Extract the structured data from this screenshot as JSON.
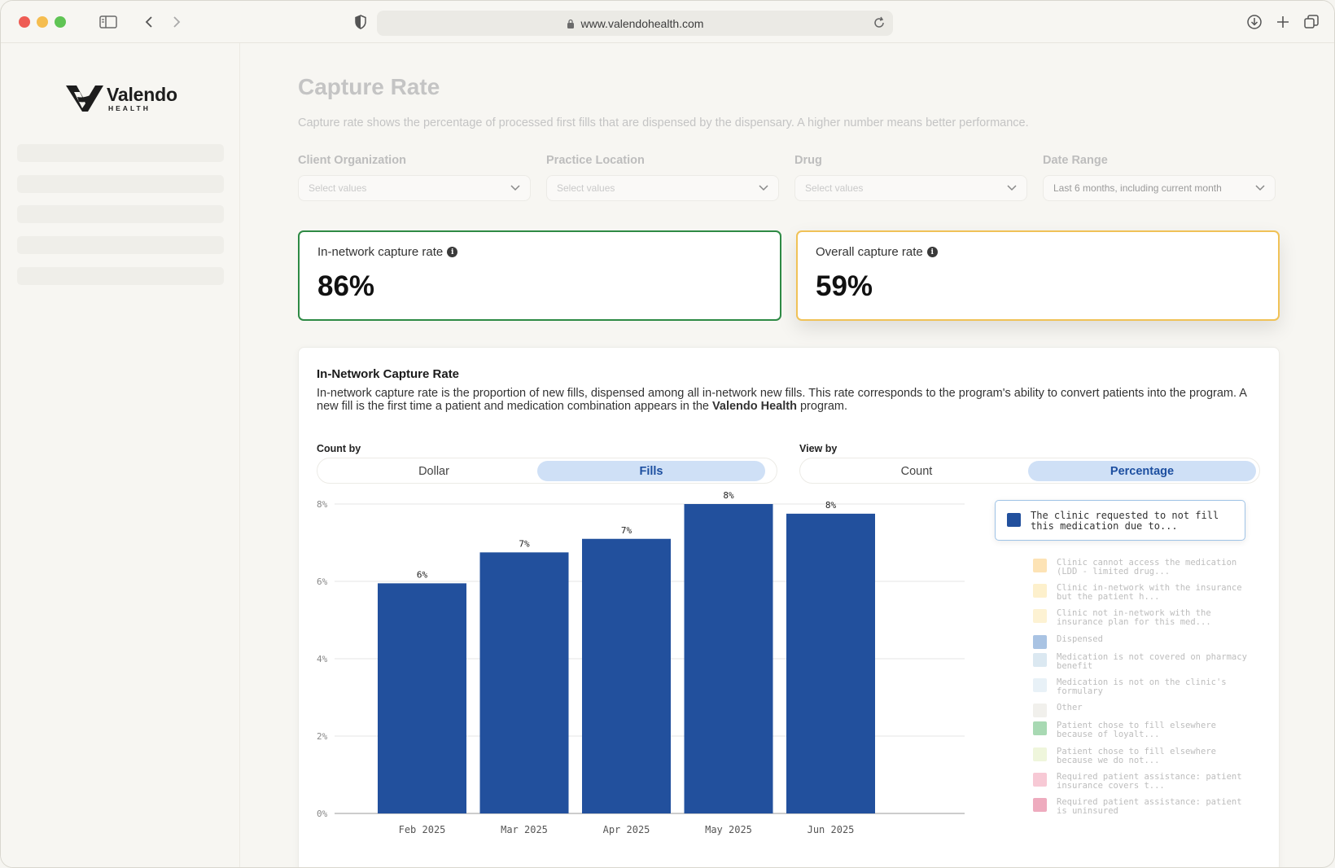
{
  "browser": {
    "url": "www.valendohealth.com"
  },
  "sidebar": {
    "logo_name": "Valendo",
    "logo_sub": "HEALTH",
    "skeleton_items": [
      1,
      2,
      3,
      4,
      5
    ]
  },
  "page": {
    "title": "Capture Rate",
    "description": "Capture rate shows the percentage of processed first fills that are dispensed by the dispensary. A higher number means better performance."
  },
  "filters": [
    {
      "label": "Client Organization",
      "value": "Select values"
    },
    {
      "label": "Practice Location",
      "value": "Select values"
    },
    {
      "label": "Drug",
      "value": "Select values"
    },
    {
      "label": "Date Range",
      "value": "Last 6 months, including current month"
    }
  ],
  "metrics": {
    "in_network": {
      "label": "In-network capture rate",
      "value": "86%",
      "color": "#2e8a45"
    },
    "overall": {
      "label": "Overall capture rate",
      "value": "59%",
      "color": "#f0c257"
    }
  },
  "card": {
    "title": "In-Network Capture Rate",
    "desc_before": "In-network capture rate is the proportion of new fills, dispensed among all in-network new fills. This rate corresponds to the program's ability to convert patients into the program. A new fill is the first time a patient and medication combination appears in the ",
    "desc_bold": "Valendo Health",
    "desc_after": " program.",
    "count_by": {
      "label": "Count by",
      "options": [
        "Dollar",
        "Fills"
      ],
      "selected": "Fills"
    },
    "view_by": {
      "label": "View by",
      "options": [
        "Count",
        "Percentage"
      ],
      "selected": "Percentage"
    }
  },
  "legend": {
    "highlighted": {
      "label": "The clinic requested to not fill this medication due to...",
      "color": "#22509d"
    },
    "items": [
      {
        "label": "Clinic cannot access the medication (LDD - limited drug...",
        "color": "#fde3b5"
      },
      {
        "label": "Clinic in-network with the insurance but the patient h...",
        "color": "#fdf0cc"
      },
      {
        "label": "Clinic not in-network with the insurance plan for this med...",
        "color": "#fdf2d3"
      },
      {
        "label": "Dispensed",
        "color": "#a9c3e3"
      },
      {
        "label": "Medication is not covered on pharmacy benefit",
        "color": "#dbe8f1"
      },
      {
        "label": "Medication is not on the clinic's formulary",
        "color": "#e8f1f7"
      },
      {
        "label": "Other",
        "color": "#f1f0ec"
      },
      {
        "label": "Patient chose to fill elsewhere because of loyalt...",
        "color": "#a8d9b3"
      },
      {
        "label": "Patient chose to fill elsewhere because we do not...",
        "color": "#eff6dc"
      },
      {
        "label": "Required patient assistance: patient insurance covers t...",
        "color": "#f7c9d5"
      },
      {
        "label": "Required patient assistance: patient is uninsured",
        "color": "#eeabbe"
      }
    ]
  },
  "chart_data": {
    "type": "bar",
    "categories": [
      "Feb 2025",
      "Mar 2025",
      "Apr 2025",
      "May 2025",
      "Jun 2025"
    ],
    "values": [
      5.95,
      6.75,
      7.1,
      8.0,
      7.75
    ],
    "data_labels": [
      "6%",
      "7%",
      "7%",
      "8%",
      "8%"
    ],
    "yticks": [
      "0%",
      "2%",
      "4%",
      "6%",
      "8%"
    ],
    "ytick_values": [
      0,
      2,
      4,
      6,
      8
    ],
    "ylim": [
      0,
      8
    ],
    "bar_color": "#22509d",
    "grid": true
  }
}
